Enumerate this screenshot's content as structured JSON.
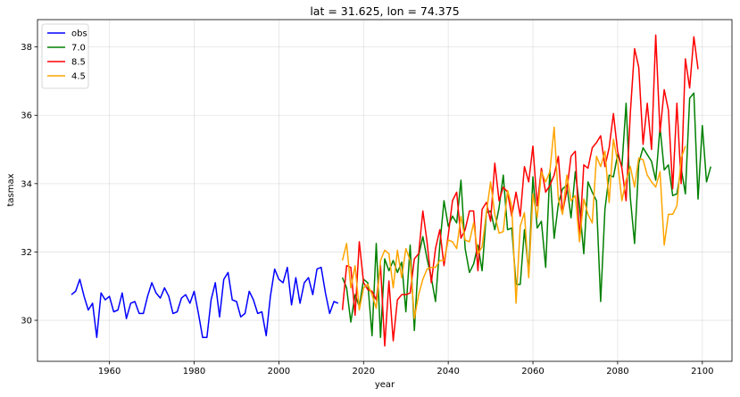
{
  "chart_data": {
    "type": "line",
    "title": "lat = 31.625, lon = 74.375",
    "xlabel": "year",
    "ylabel": "tasmax",
    "xlim": [
      1943,
      2107
    ],
    "ylim": [
      28.8,
      38.8
    ],
    "xticks": [
      1960,
      1980,
      2000,
      2020,
      2040,
      2060,
      2080,
      2100
    ],
    "yticks": [
      30,
      32,
      34,
      36,
      38
    ],
    "grid": true,
    "legend_position": "top-left",
    "series": [
      {
        "name": "obs",
        "color": "#0000ff",
        "x_start": 1951,
        "values": [
          30.75,
          30.85,
          31.2,
          30.7,
          30.3,
          30.5,
          29.5,
          30.8,
          30.6,
          30.7,
          30.25,
          30.3,
          30.8,
          30.05,
          30.5,
          30.55,
          30.2,
          30.2,
          30.7,
          31.1,
          30.8,
          30.65,
          30.95,
          30.7,
          30.2,
          30.25,
          30.65,
          30.75,
          30.5,
          30.85,
          30.2,
          29.5,
          29.5,
          30.6,
          31.1,
          30.1,
          31.2,
          31.4,
          30.6,
          30.55,
          30.1,
          30.2,
          30.85,
          30.6,
          30.2,
          30.25,
          29.55,
          30.7,
          31.5,
          31.2,
          31.1,
          31.55,
          30.45,
          31.25,
          30.5,
          31.1,
          31.25,
          30.75,
          31.5,
          31.55,
          30.8,
          30.2,
          30.55,
          30.5
        ]
      },
      {
        "name": "7.0",
        "color": "#008000",
        "x_start": 2015,
        "values": [
          31.25,
          30.95,
          29.95,
          30.75,
          30.4,
          31.2,
          31.1,
          29.55,
          32.25,
          29.5,
          31.8,
          31.45,
          31.75,
          31.4,
          31.7,
          30.25,
          32.2,
          29.7,
          31.9,
          32.45,
          31.8,
          31.25,
          30.55,
          32.2,
          33.5,
          32.75,
          33.05,
          32.85,
          34.1,
          32.1,
          31.4,
          31.65,
          32.2,
          31.45,
          33.15,
          33.2,
          32.65,
          33.3,
          34.25,
          32.65,
          32.7,
          31.05,
          31.05,
          32.65,
          31.4,
          34.2,
          32.7,
          32.9,
          31.55,
          34.4,
          32.4,
          33.4,
          33.85,
          33.95,
          33,
          34.35,
          33.35,
          31.95,
          34.05,
          33.75,
          33.5,
          30.55,
          33.25,
          34.25,
          34.2,
          34.85,
          34.5,
          36.35,
          33.6,
          32.25,
          34.6,
          35.05,
          34.85,
          34.65,
          34.1,
          35.65,
          34.4,
          34.55,
          33.65,
          33.7,
          34.45,
          33.7,
          36.5,
          36.65,
          33.55,
          35.7,
          34.05,
          34.5
        ]
      },
      {
        "name": "8.5",
        "color": "#ff0000",
        "x_start": 2015,
        "values": [
          30.3,
          31.6,
          31.55,
          30.15,
          32.3,
          31.1,
          30.9,
          30.85,
          30.6,
          31.6,
          29.25,
          31.15,
          29.4,
          30.6,
          30.75,
          30.75,
          30.8,
          31.8,
          31.95,
          33.2,
          32.3,
          31.1,
          32.1,
          32.65,
          31.6,
          32.5,
          33.5,
          33.75,
          32.4,
          32.65,
          33.2,
          33.2,
          31.45,
          33.25,
          33.45,
          32.9,
          34.6,
          33.5,
          33.9,
          33.75,
          33.05,
          33.75,
          33.05,
          34.5,
          34.05,
          35.1,
          33.35,
          34.45,
          33.75,
          33.95,
          34.25,
          34.8,
          33.15,
          33.8,
          34.8,
          34.95,
          32.35,
          34.55,
          34.45,
          35.05,
          35.2,
          35.4,
          34.5,
          35.05,
          36.05,
          34.95,
          34.45,
          33.5,
          36.05,
          37.95,
          37.4,
          35.15,
          36.35,
          35.0,
          38.35,
          35.5,
          36.75,
          36.15,
          33.85,
          36.35,
          34.0,
          37.65,
          36.8,
          38.3,
          37.35
        ]
      },
      {
        "name": "4.5",
        "color": "#ffa500",
        "x_start": 2015,
        "values": [
          31.75,
          32.25,
          30.95,
          31.6,
          30.3,
          30.95,
          31.05,
          30.75,
          30.35,
          31.75,
          32.05,
          31.95,
          30.95,
          32.05,
          31.25,
          32.1,
          31.75,
          30.05,
          30.75,
          31.2,
          31.5,
          31.55,
          31.55,
          31.75,
          31.75,
          32.35,
          32.3,
          32.1,
          33.05,
          32.35,
          32.3,
          32.85,
          31.95,
          32.15,
          33.15,
          34.05,
          33.1,
          32.55,
          32.6,
          33.8,
          33.35,
          30.5,
          32.75,
          33.15,
          31.25,
          33.7,
          33.0,
          34.35,
          34.05,
          34.35,
          35.65,
          33.55,
          33.1,
          34.25,
          33.5,
          33.65,
          32.3,
          33.55,
          33.1,
          32.85,
          34.8,
          34.5,
          34.95,
          33.45,
          35.3,
          34.65,
          33.5,
          34.1,
          34.5,
          33.9,
          34.75,
          34.7,
          34.25,
          34.05,
          33.9,
          34.35,
          32.2,
          33.1,
          33.1,
          33.35,
          34.75,
          35.1
        ]
      }
    ]
  }
}
